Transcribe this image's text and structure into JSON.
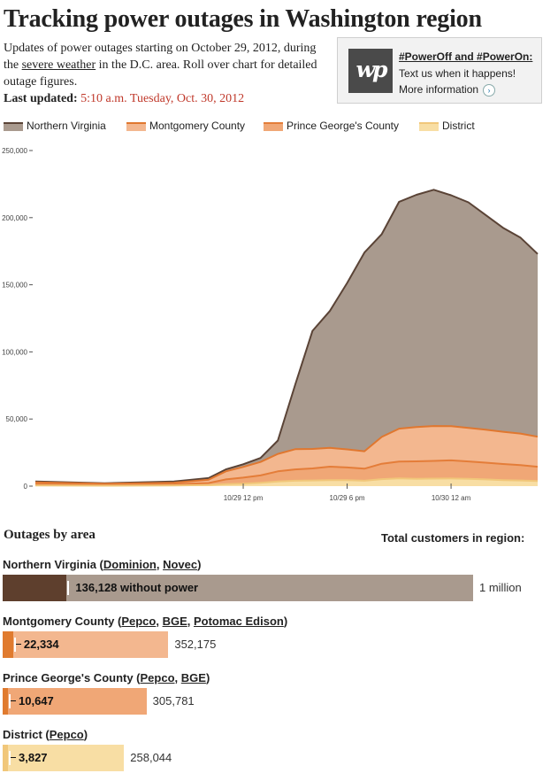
{
  "header": {
    "title": "Tracking power outages in Washington region",
    "intro_before": "Updates of power outages starting on October 29, 2012, during the ",
    "intro_link": "severe weather",
    "intro_after": " in the D.C. area. Roll over chart for detailed outage figures.",
    "updated_label": "Last updated:",
    "updated_value": "5:10 a.m. Tuesday, Oct. 30, 2012"
  },
  "promo": {
    "logo_text": "wp",
    "headline": "#PowerOff and #PowerOn:",
    "text": "Text us when it happens!",
    "more": "More information"
  },
  "colors": {
    "northern_virginia": "#a99a8e",
    "northern_virginia_line": "#5a4336",
    "montgomery": "#f3b78f",
    "montgomery_line": "#e0772f",
    "prince_georges": "#f0a776",
    "prince_georges_line": "#e47d39",
    "district": "#f8dea4",
    "district_line": "#f1c77a",
    "nova_outage_bar": "#5e3f2d",
    "orange_outage_bar": "#e07b2f",
    "district_outage_bar": "#f1c77a",
    "updated_time": "#c0392b"
  },
  "chart_data": {
    "type": "area",
    "stacked": true,
    "x_unit": "hours since 12 a.m. Oct. 29, 2012",
    "x": [
      0,
      2,
      4,
      6,
      8,
      10,
      11,
      12,
      13,
      14,
      15,
      16,
      17,
      18,
      19,
      20,
      21,
      22,
      23,
      24,
      25,
      26,
      27,
      28,
      29
    ],
    "xticks": [
      "10/29 12 pm",
      "10/29 6 pm",
      "10/30 12 am"
    ],
    "xtick_values": [
      12,
      18,
      24
    ],
    "ylim": [
      0,
      250000
    ],
    "yticks": [
      "250,000",
      "200,000",
      "150,000",
      "100,000",
      "50,000",
      "0"
    ],
    "ytick_values": [
      250000,
      200000,
      150000,
      100000,
      50000,
      0
    ],
    "series": [
      {
        "name": "District",
        "values": [
          500,
          400,
          300,
          400,
          500,
          800,
          1500,
          1800,
          2500,
          3500,
          4000,
          4200,
          4500,
          4400,
          4000,
          5200,
          5800,
          5500,
          5600,
          5700,
          5400,
          5000,
          4500,
          4200,
          3827
        ]
      },
      {
        "name": "Prince George's County",
        "values": [
          800,
          700,
          600,
          700,
          800,
          1500,
          3500,
          4500,
          5500,
          7500,
          8500,
          9000,
          10000,
          9500,
          9000,
          11500,
          12500,
          13000,
          13200,
          13500,
          13000,
          12500,
          12000,
          11500,
          10647
        ]
      },
      {
        "name": "Montgomery County",
        "values": [
          1500,
          1200,
          900,
          1100,
          1300,
          2500,
          6000,
          8000,
          10000,
          13000,
          15000,
          14500,
          14000,
          13500,
          13000,
          20000,
          24500,
          25500,
          26000,
          25500,
          25000,
          24500,
          24000,
          23500,
          22334
        ]
      },
      {
        "name": "Northern Virginia",
        "values": [
          700,
          500,
          400,
          600,
          800,
          1200,
          1500,
          2000,
          3000,
          10000,
          48000,
          88000,
          102000,
          124000,
          148000,
          151000,
          169000,
          173000,
          176000,
          172000,
          168000,
          160000,
          152000,
          146000,
          136128
        ]
      }
    ]
  },
  "outages": {
    "heading": "Outages by area",
    "total_heading": "Total customers in region:",
    "regions": [
      {
        "name": "Northern Virginia",
        "providers": [
          "Dominion",
          "Novec"
        ],
        "outage": 136128,
        "outage_label": "136,128 without power",
        "total": 1000000,
        "total_label": "1 million"
      },
      {
        "name": "Montgomery County",
        "providers": [
          "Pepco",
          "BGE",
          "Potomac Edison"
        ],
        "outage": 22334,
        "outage_label": "22,334",
        "total": 352175,
        "total_label": "352,175"
      },
      {
        "name": "Prince George's County",
        "providers": [
          "Pepco",
          "BGE"
        ],
        "outage": 10647,
        "outage_label": "10,647",
        "total": 305781,
        "total_label": "305,781"
      },
      {
        "name": "District",
        "providers": [
          "Pepco"
        ],
        "outage": 3827,
        "outage_label": "3,827",
        "total": 258044,
        "total_label": "258,044"
      }
    ]
  }
}
